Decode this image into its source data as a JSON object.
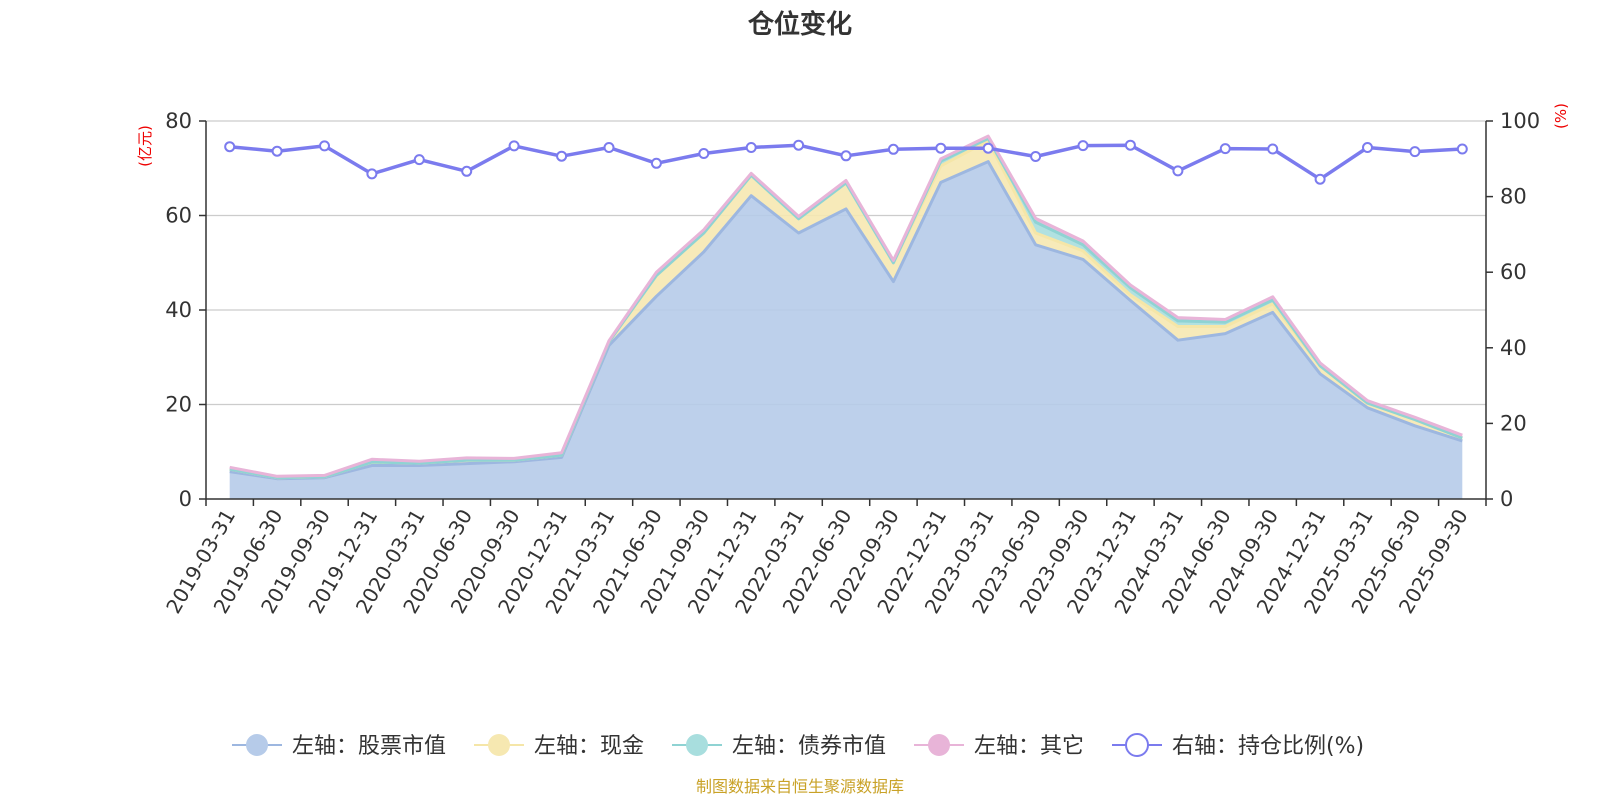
{
  "chart_data": {
    "type": "area",
    "title": "仓位变化",
    "left_axis_unit": "(亿元)",
    "right_axis_unit": "(%)",
    "left_ylim": [
      0,
      80
    ],
    "left_ticks": [
      0,
      20,
      40,
      60,
      80
    ],
    "right_ylim": [
      0,
      100
    ],
    "right_ticks": [
      0,
      20,
      40,
      60,
      80,
      100
    ],
    "grid": true,
    "legend_position": "bottom",
    "x": [
      "2019-03-31",
      "2019-06-30",
      "2019-09-30",
      "2019-12-31",
      "2020-03-31",
      "2020-06-30",
      "2020-09-30",
      "2020-12-31",
      "2021-03-31",
      "2021-06-30",
      "2021-09-30",
      "2021-12-31",
      "2022-03-31",
      "2022-06-30",
      "2022-09-30",
      "2022-12-31",
      "2023-03-31",
      "2023-06-30",
      "2023-09-30",
      "2023-12-31",
      "2024-03-31",
      "2024-06-30",
      "2024-09-30",
      "2024-12-31",
      "2025-03-31",
      "2025-06-30",
      "2025-09-30"
    ],
    "stacked_series": [
      {
        "name": "左轴：股票市值",
        "axis": "left",
        "color": "#9db7e0",
        "fill": "#b6cbe9",
        "values": [
          5.8,
          4.3,
          4.5,
          7.1,
          7.1,
          7.5,
          7.9,
          8.8,
          32.5,
          42.9,
          52.3,
          64.2,
          56.3,
          61.4,
          46.0,
          67.0,
          71.4,
          53.8,
          50.7,
          42.0,
          33.6,
          35.0,
          39.5,
          26.5,
          19.3,
          15.5,
          12.3
        ]
      },
      {
        "name": "左轴：现金",
        "axis": "left",
        "color": "#f5e6a8",
        "fill": "#f6e8b1",
        "values": [
          0.5,
          0.2,
          0.2,
          0.7,
          0.5,
          0.7,
          0.3,
          0.5,
          0.8,
          4.4,
          4.0,
          4.3,
          3.0,
          5.5,
          4.0,
          3.5,
          4.4,
          2.5,
          1.8,
          1.2,
          2.9,
          1.5,
          1.8,
          1.7,
          1.0,
          1.3,
          0.6
        ]
      },
      {
        "name": "左轴：债券市值",
        "axis": "left",
        "color": "#8fd3d3",
        "fill": "#a8dede",
        "values": [
          0,
          0,
          0,
          0,
          0,
          0,
          0,
          0,
          0,
          0,
          0,
          0,
          0,
          0,
          0,
          1.0,
          0.5,
          2.3,
          1.3,
          1.5,
          1.2,
          0.9,
          0.8,
          0,
          0,
          0,
          0
        ]
      },
      {
        "name": "左轴：其它",
        "axis": "left",
        "color": "#e8b4d8",
        "fill": "#e8b4d8",
        "values": [
          0.4,
          0.3,
          0.3,
          0.6,
          0.4,
          0.5,
          0.4,
          0.5,
          0.2,
          0.7,
          0.7,
          0.4,
          0.5,
          0.5,
          0.5,
          0.5,
          0.5,
          0.8,
          0.8,
          0.6,
          0.7,
          0.6,
          0.7,
          0.6,
          0.5,
          0.5,
          0.6
        ]
      }
    ],
    "line_series": {
      "name": "右轴：持仓比例(%)",
      "axis": "right",
      "color": "#7b7bee",
      "values": [
        93.2,
        92.0,
        93.4,
        86.0,
        89.8,
        86.7,
        93.4,
        90.7,
        93.0,
        88.8,
        91.4,
        93.0,
        93.6,
        90.8,
        92.5,
        92.8,
        92.8,
        90.6,
        93.5,
        93.6,
        86.8,
        92.7,
        92.6,
        84.6,
        93.0,
        91.9,
        92.6
      ]
    },
    "source_note": "制图数据来自恒生聚源数据库"
  }
}
